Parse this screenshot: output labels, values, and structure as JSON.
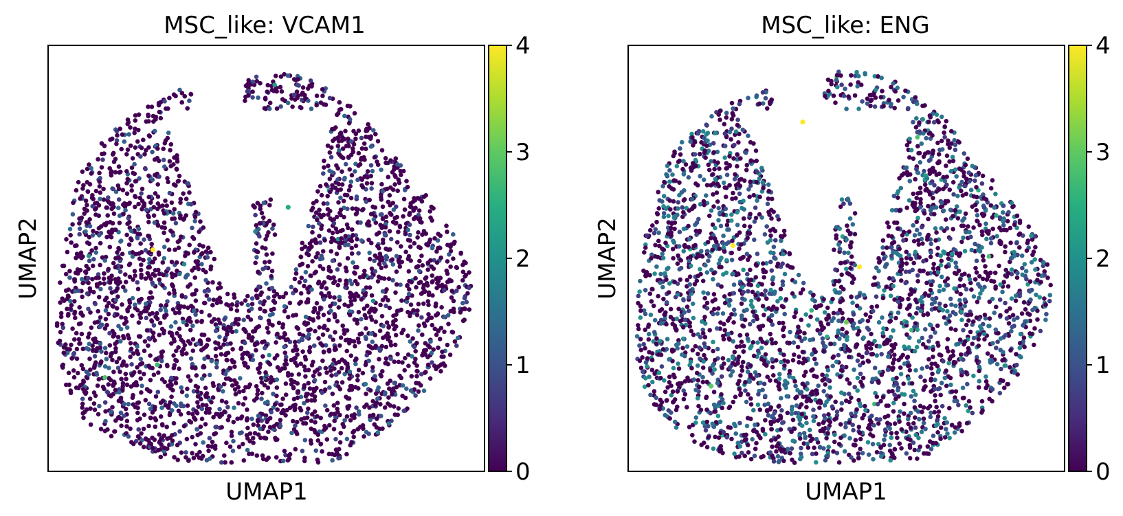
{
  "chart_data": [
    {
      "type": "scatter",
      "title": "MSC_like: VCAM1",
      "xlabel": "UMAP1",
      "ylabel": "UMAP2",
      "colorbar": {
        "min": 0,
        "max": 4,
        "ticks": [
          "0",
          "1",
          "2",
          "3",
          "4"
        ],
        "colormap": "viridis"
      },
      "xticks": "none",
      "yticks": "none",
      "grid": false,
      "legend": "colorbar-right",
      "embedding": {
        "shape": "ring",
        "center": [
          0.47,
          0.55
        ],
        "outer_radius": 0.47,
        "void": "central cavity open toward the top"
      },
      "expression": {
        "fraction_zero": 0.78,
        "typical_nonzero": [
          0.6,
          1.4
        ],
        "hotspots": [
          {
            "x": 0.24,
            "y": 0.48,
            "value": 4
          },
          {
            "x": 0.13,
            "y": 0.78,
            "value": 2.9
          },
          {
            "x": 0.25,
            "y": 0.75,
            "value": 2.7
          },
          {
            "x": 0.55,
            "y": 0.38,
            "value": 2.5
          }
        ]
      }
    },
    {
      "type": "scatter",
      "title": "MSC_like: ENG",
      "xlabel": "UMAP1",
      "ylabel": "UMAP2",
      "colorbar": {
        "min": 0,
        "max": 4,
        "ticks": [
          "0",
          "1",
          "2",
          "3",
          "4"
        ],
        "colormap": "viridis"
      },
      "xticks": "none",
      "yticks": "none",
      "grid": false,
      "legend": "colorbar-right",
      "embedding": {
        "shape": "ring",
        "center": [
          0.47,
          0.55
        ],
        "outer_radius": 0.47,
        "void": "central cavity open toward the top"
      },
      "expression": {
        "fraction_zero": 0.52,
        "typical_nonzero": [
          0.6,
          2.0
        ],
        "hotspots": [
          {
            "x": 0.24,
            "y": 0.47,
            "value": 4
          },
          {
            "x": 0.53,
            "y": 0.52,
            "value": 4
          },
          {
            "x": 0.4,
            "y": 0.18,
            "value": 4
          },
          {
            "x": 0.5,
            "y": 0.65,
            "value": 3.1
          },
          {
            "x": 0.19,
            "y": 0.8,
            "value": 3
          }
        ]
      }
    }
  ]
}
